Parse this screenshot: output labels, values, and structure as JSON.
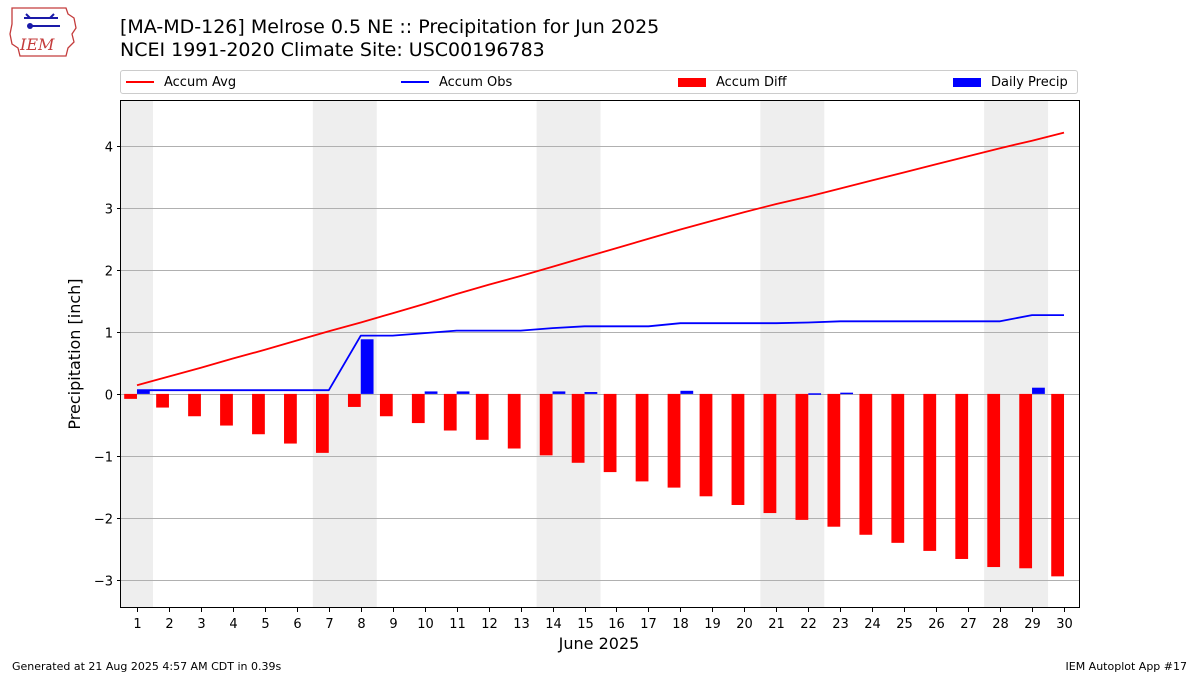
{
  "title_line1": "[MA-MD-126] Melrose 0.5 NE :: Precipitation for Jun 2025",
  "title_line2": "NCEI 1991-2020 Climate Site: USC00196783",
  "logo_text": "IEM",
  "footer_left": "Generated at 21 Aug 2025 4:57 AM CDT in 0.39s",
  "footer_right": "IEM Autoplot App #17",
  "colors": {
    "avg": "#ff0000",
    "obs": "#0000ff",
    "diff": "#ff0000",
    "daily": "#0000ff",
    "weekend_band": "#eeeeee",
    "grid": "#b0b0b0"
  },
  "chart_data": {
    "type": "bar",
    "xlabel": "June 2025",
    "ylabel": "Precipitation [inch]",
    "ylim": [
      -3.45,
      4.72
    ],
    "xlim": [
      0.5,
      30.5
    ],
    "grid": "horizontal",
    "legend_placement": "top",
    "days": [
      1,
      2,
      3,
      4,
      5,
      6,
      7,
      8,
      9,
      10,
      11,
      12,
      13,
      14,
      15,
      16,
      17,
      18,
      19,
      20,
      21,
      22,
      23,
      24,
      25,
      26,
      27,
      28,
      29,
      30
    ],
    "y_ticks": [
      -3,
      -2,
      -1,
      0,
      1,
      2,
      3,
      4
    ],
    "y_tick_labels": [
      "−3",
      "−2",
      "−1",
      "0",
      "1",
      "2",
      "3",
      "4"
    ],
    "shaded_day_ranges": [
      [
        0.5,
        1.5
      ],
      [
        6.5,
        8.5
      ],
      [
        13.5,
        15.5
      ],
      [
        20.5,
        22.5
      ],
      [
        27.5,
        29.5
      ]
    ],
    "series": [
      {
        "name": "Accum Avg",
        "kind": "line",
        "values": [
          0.14,
          0.28,
          0.42,
          0.57,
          0.71,
          0.86,
          1.01,
          1.15,
          1.3,
          1.45,
          1.61,
          1.76,
          1.9,
          2.05,
          2.2,
          2.35,
          2.5,
          2.65,
          2.79,
          2.93,
          3.06,
          3.18,
          3.31,
          3.44,
          3.57,
          3.7,
          3.83,
          3.96,
          4.08,
          4.21
        ]
      },
      {
        "name": "Accum Obs",
        "kind": "line",
        "values": [
          0.06,
          0.06,
          0.06,
          0.06,
          0.06,
          0.06,
          0.06,
          0.94,
          0.94,
          0.98,
          1.02,
          1.02,
          1.02,
          1.06,
          1.09,
          1.09,
          1.09,
          1.14,
          1.14,
          1.14,
          1.14,
          1.15,
          1.17,
          1.17,
          1.17,
          1.17,
          1.17,
          1.17,
          1.27,
          1.27
        ]
      },
      {
        "name": "Accum Diff",
        "kind": "bar",
        "values": [
          -0.08,
          -0.22,
          -0.36,
          -0.51,
          -0.65,
          -0.8,
          -0.95,
          -0.21,
          -0.36,
          -0.47,
          -0.59,
          -0.74,
          -0.88,
          -0.99,
          -1.11,
          -1.26,
          -1.41,
          -1.51,
          -1.65,
          -1.79,
          -1.92,
          -2.03,
          -2.14,
          -2.27,
          -2.4,
          -2.53,
          -2.66,
          -2.79,
          -2.81,
          -2.94
        ]
      },
      {
        "name": "Daily Precip",
        "kind": "bar",
        "values": [
          0.06,
          0,
          0,
          0,
          0,
          0,
          0,
          0.88,
          0,
          0.04,
          0.04,
          0,
          0,
          0.04,
          0.03,
          0,
          0,
          0.05,
          0,
          0,
          0,
          0.01,
          0.02,
          0,
          0,
          0,
          0,
          0,
          0.1,
          0
        ]
      }
    ]
  }
}
